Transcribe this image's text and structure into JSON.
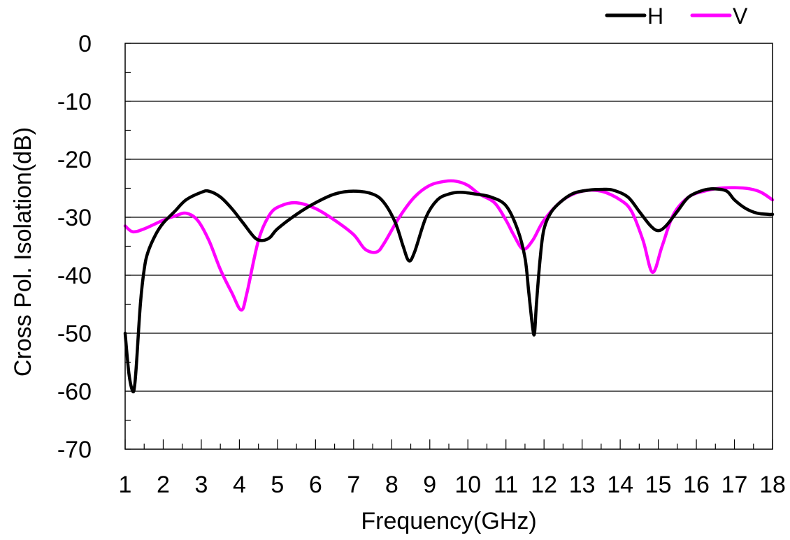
{
  "chart_data": {
    "type": "line",
    "xlabel": "Frequency(GHz)",
    "ylabel": "Cross Pol. Isolation(dB)",
    "xlim": [
      1,
      18
    ],
    "ylim": [
      -70,
      0
    ],
    "x_ticks": [
      1,
      2,
      3,
      4,
      5,
      6,
      7,
      8,
      9,
      10,
      11,
      12,
      13,
      14,
      15,
      16,
      17,
      18
    ],
    "y_ticks": [
      0,
      -10,
      -20,
      -30,
      -40,
      -50,
      -60,
      -70
    ],
    "grid": "horizontal",
    "legend_position": "top-right",
    "series": [
      {
        "name": "H",
        "color": "#000000",
        "x": [
          1.0,
          1.1,
          1.2,
          1.25,
          1.3,
          1.4,
          1.5,
          1.6,
          1.8,
          2.0,
          2.3,
          2.6,
          3.0,
          3.2,
          3.5,
          3.8,
          4.1,
          4.4,
          4.6,
          4.8,
          5.0,
          5.5,
          6.0,
          6.5,
          7.0,
          7.5,
          7.8,
          8.1,
          8.3,
          8.45,
          8.6,
          8.9,
          9.2,
          9.5,
          9.8,
          10.2,
          10.6,
          11.0,
          11.3,
          11.5,
          11.6,
          11.7,
          11.75,
          11.8,
          11.9,
          12.0,
          12.2,
          12.5,
          12.8,
          13.2,
          13.5,
          13.8,
          14.2,
          14.5,
          14.8,
          15.0,
          15.2,
          15.5,
          15.8,
          16.2,
          16.5,
          16.8,
          17.0,
          17.3,
          17.6,
          17.9,
          18.0
        ],
        "y": [
          -50,
          -57,
          -60,
          -59,
          -55,
          -45,
          -39,
          -36,
          -33,
          -31,
          -29,
          -27,
          -25.7,
          -25.5,
          -26.5,
          -28.5,
          -31,
          -33.5,
          -34,
          -33.5,
          -32,
          -29.5,
          -27.5,
          -26,
          -25.5,
          -26,
          -27.5,
          -31,
          -35,
          -37.5,
          -36,
          -30,
          -27,
          -26,
          -25.7,
          -26,
          -26.5,
          -28,
          -32,
          -37,
          -43,
          -49,
          -50,
          -45,
          -37,
          -32,
          -29,
          -27,
          -25.8,
          -25.3,
          -25.2,
          -25.3,
          -26.5,
          -29,
          -31.5,
          -32.3,
          -31.5,
          -29,
          -26.5,
          -25.3,
          -25.1,
          -25.5,
          -27,
          -28.5,
          -29.3,
          -29.5,
          -29.5
        ]
      },
      {
        "name": "V",
        "color": "#ff00ff",
        "x": [
          1.0,
          1.2,
          1.5,
          2.0,
          2.3,
          2.6,
          2.9,
          3.2,
          3.5,
          3.8,
          4.05,
          4.2,
          4.5,
          4.8,
          5.1,
          5.5,
          6.0,
          6.5,
          7.0,
          7.3,
          7.6,
          7.8,
          8.2,
          8.6,
          9.0,
          9.4,
          9.7,
          10.0,
          10.3,
          10.7,
          11.0,
          11.2,
          11.45,
          11.7,
          12.0,
          12.5,
          13.0,
          13.5,
          14.0,
          14.3,
          14.6,
          14.85,
          15.1,
          15.4,
          15.8,
          16.2,
          16.6,
          17.0,
          17.4,
          17.7,
          18.0
        ],
        "y": [
          -31.5,
          -32.5,
          -32,
          -30.5,
          -29.8,
          -29.3,
          -30.5,
          -34,
          -39,
          -43,
          -46,
          -43,
          -34,
          -29.5,
          -28,
          -27.5,
          -28.5,
          -30.5,
          -33,
          -35.5,
          -36,
          -34.5,
          -30,
          -26.5,
          -24.5,
          -23.8,
          -23.8,
          -24.5,
          -26,
          -27.5,
          -30.5,
          -33,
          -35.5,
          -34,
          -30.5,
          -27,
          -25.5,
          -25.5,
          -27,
          -29,
          -34,
          -39.5,
          -35,
          -29.5,
          -26.5,
          -25.5,
          -25,
          -24.9,
          -25.1,
          -25.7,
          -27
        ]
      }
    ]
  }
}
